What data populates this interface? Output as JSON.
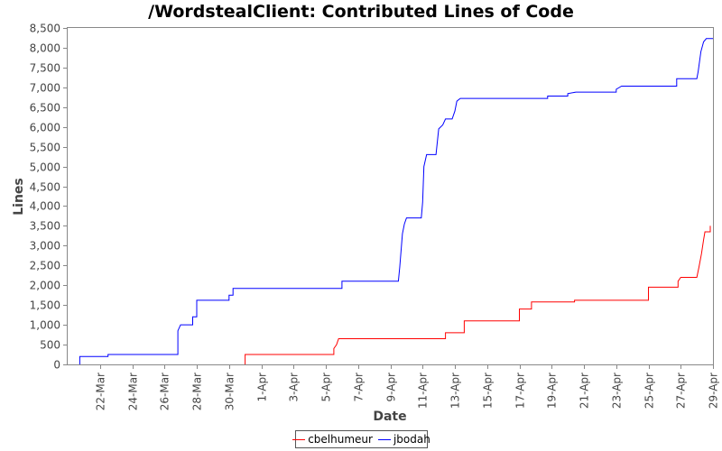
{
  "chart_data": {
    "type": "line",
    "title": "/WordstealClient: Contributed Lines of Code",
    "xlabel": "Date",
    "ylabel": "Lines",
    "xlim": [
      "2008-03-20",
      "2008-04-29"
    ],
    "ylim": [
      0,
      8500
    ],
    "x_ticks": [
      "22-Mar",
      "24-Mar",
      "26-Mar",
      "28-Mar",
      "30-Mar",
      "1-Apr",
      "3-Apr",
      "5-Apr",
      "7-Apr",
      "9-Apr",
      "11-Apr",
      "13-Apr",
      "15-Apr",
      "17-Apr",
      "19-Apr",
      "21-Apr",
      "23-Apr",
      "25-Apr",
      "27-Apr",
      "29-Apr"
    ],
    "y_ticks": [
      0,
      500,
      1000,
      1500,
      2000,
      2500,
      3000,
      3500,
      4000,
      4500,
      5000,
      5500,
      6000,
      6500,
      7000,
      7500,
      8000,
      8500
    ],
    "y_tick_labels": [
      "0",
      "500",
      "1,000",
      "1,500",
      "2,000",
      "2,500",
      "3,000",
      "3,500",
      "4,000",
      "4,500",
      "5,000",
      "5,500",
      "6,000",
      "6,500",
      "7,000",
      "7,500",
      "8,000",
      "8,500"
    ],
    "grid": false,
    "legend_position": "bottom",
    "series": [
      {
        "name": "cbelhumeur",
        "color": "#ff0000",
        "points": [
          [
            "2008-03-31 00:00",
            0
          ],
          [
            "2008-03-31 00:00",
            250
          ],
          [
            "2008-04-05 12:00",
            250
          ],
          [
            "2008-04-05 12:00",
            400
          ],
          [
            "2008-04-05 16:00",
            500
          ],
          [
            "2008-04-05 19:00",
            650
          ],
          [
            "2008-04-12 10:00",
            650
          ],
          [
            "2008-04-12 10:00",
            800
          ],
          [
            "2008-04-13 14:00",
            800
          ],
          [
            "2008-04-13 14:00",
            1100
          ],
          [
            "2008-04-17 00:00",
            1100
          ],
          [
            "2008-04-17 00:00",
            1400
          ],
          [
            "2008-04-17 18:00",
            1400
          ],
          [
            "2008-04-17 18:00",
            1580
          ],
          [
            "2008-04-20 10:00",
            1580
          ],
          [
            "2008-04-20 10:00",
            1620
          ],
          [
            "2008-04-25 00:00",
            1620
          ],
          [
            "2008-04-25 00:00",
            1950
          ],
          [
            "2008-04-26 20:00",
            1950
          ],
          [
            "2008-04-26 20:00",
            2100
          ],
          [
            "2008-04-27 00:00",
            2200
          ],
          [
            "2008-04-28 00:00",
            2200
          ],
          [
            "2008-04-28 03:00",
            2450
          ],
          [
            "2008-04-28 07:00",
            2800
          ],
          [
            "2008-04-28 10:00",
            3150
          ],
          [
            "2008-04-28 12:00",
            3350
          ],
          [
            "2008-04-28 20:00",
            3350
          ],
          [
            "2008-04-28 20:00",
            3500
          ]
        ]
      },
      {
        "name": "jbodah",
        "color": "#0000ff",
        "points": [
          [
            "2008-03-20 18:00",
            0
          ],
          [
            "2008-03-20 18:00",
            200
          ],
          [
            "2008-03-22 12:00",
            200
          ],
          [
            "2008-03-22 12:00",
            250
          ],
          [
            "2008-03-26 20:00",
            250
          ],
          [
            "2008-03-26 20:00",
            850
          ],
          [
            "2008-03-27 00:00",
            1000
          ],
          [
            "2008-03-27 18:00",
            1000
          ],
          [
            "2008-03-27 18:00",
            1200
          ],
          [
            "2008-03-28 00:00",
            1200
          ],
          [
            "2008-03-28 00:00",
            1620
          ],
          [
            "2008-03-30 00:00",
            1620
          ],
          [
            "2008-03-30 00:00",
            1750
          ],
          [
            "2008-03-30 06:00",
            1750
          ],
          [
            "2008-03-30 06:00",
            1920
          ],
          [
            "2008-04-06 00:00",
            1920
          ],
          [
            "2008-04-06 00:00",
            2100
          ],
          [
            "2008-04-09 12:00",
            2100
          ],
          [
            "2008-04-09 14:00",
            2450
          ],
          [
            "2008-04-09 18:00",
            3300
          ],
          [
            "2008-04-09 21:00",
            3550
          ],
          [
            "2008-04-10 00:00",
            3700
          ],
          [
            "2008-04-10 22:00",
            3700
          ],
          [
            "2008-04-11 00:00",
            4100
          ],
          [
            "2008-04-11 02:00",
            5000
          ],
          [
            "2008-04-11 06:00",
            5300
          ],
          [
            "2008-04-11 20:00",
            5300
          ],
          [
            "2008-04-12 00:00",
            5950
          ],
          [
            "2008-04-12 06:00",
            6050
          ],
          [
            "2008-04-12 10:00",
            6200
          ],
          [
            "2008-04-12 20:00",
            6200
          ],
          [
            "2008-04-13 00:00",
            6400
          ],
          [
            "2008-04-13 03:00",
            6650
          ],
          [
            "2008-04-13 08:00",
            6720
          ],
          [
            "2008-04-18 18:00",
            6720
          ],
          [
            "2008-04-18 18:00",
            6780
          ],
          [
            "2008-04-20 00:00",
            6780
          ],
          [
            "2008-04-20 00:00",
            6840
          ],
          [
            "2008-04-20 12:00",
            6880
          ],
          [
            "2008-04-23 00:00",
            6880
          ],
          [
            "2008-04-23 00:00",
            6950
          ],
          [
            "2008-04-23 08:00",
            7030
          ],
          [
            "2008-04-26 18:00",
            7030
          ],
          [
            "2008-04-26 18:00",
            7220
          ],
          [
            "2008-04-28 00:00",
            7220
          ],
          [
            "2008-04-28 02:00",
            7400
          ],
          [
            "2008-04-28 06:00",
            7900
          ],
          [
            "2008-04-28 10:00",
            8150
          ],
          [
            "2008-04-28 14:00",
            8230
          ],
          [
            "2008-04-29 00:00",
            8230
          ]
        ]
      }
    ]
  }
}
